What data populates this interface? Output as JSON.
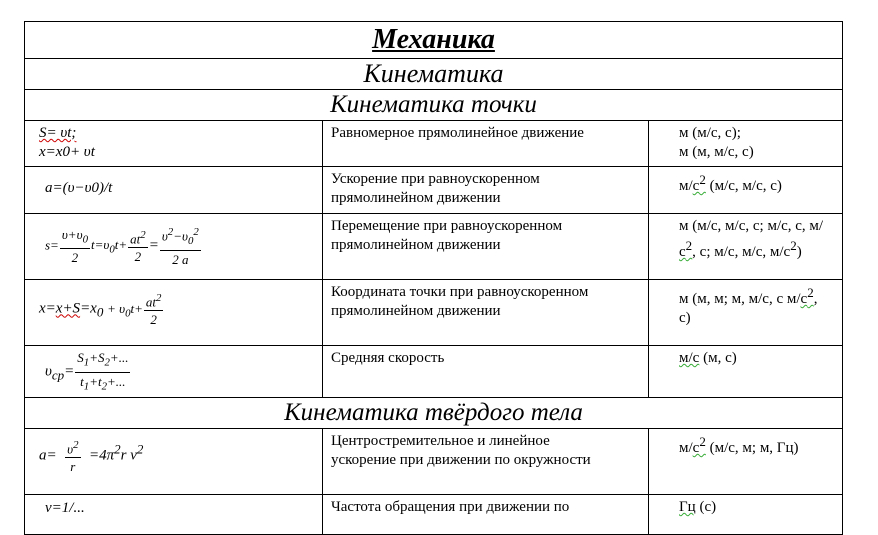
{
  "title": "Механика",
  "section": "Кинематика",
  "subsections": [
    "Кинематика точки",
    "Кинематика твёрдого тела"
  ],
  "rows": [
    {
      "formula_lines": [
        "S= υt;",
        "x=x0+ υt"
      ],
      "description": "Равномерное прямолинейное движение",
      "units": [
        "м (м/с,  с);",
        "м (м, м/с, с)"
      ]
    },
    {
      "formula": "a=(υ−υ0)/t",
      "description": "Ускорение при равноускоренном прямолинейном движении",
      "units": "м/с2 (м/с, м/с, с)"
    },
    {
      "formula": "s=(υ+υ0)/2·t=υ0t+at2/2=(υ2−υ02)/(2a)",
      "description": "Перемещение  при равноускоренном прямолинейном движении",
      "units": "м (м/с, м/с, с; м/с, с, м/с2, с; м/с, м/с, м/с2)"
    },
    {
      "formula": "x=x+S=x0 + υ0t+at2/2",
      "description": "Координата точки  при равноускоренном прямолинейном движении",
      "units": "м (м, м; м, м/с, с м/с2, с)"
    },
    {
      "formula": "υср=(S1+S2+...)/(t1+t2+...)",
      "description": "Средняя скорость",
      "units": "м/с (м, с)"
    },
    {
      "formula": "a= υ2/r =4π2r ν2",
      "description": "Центростремительное и линейное ускорение при движении по окружности",
      "units": "м/с2 (м/с, м; м, Гц)"
    },
    {
      "formula": "ν=1/...",
      "description": "Частота обращения  при движении по",
      "units": "Гц (с)"
    }
  ]
}
